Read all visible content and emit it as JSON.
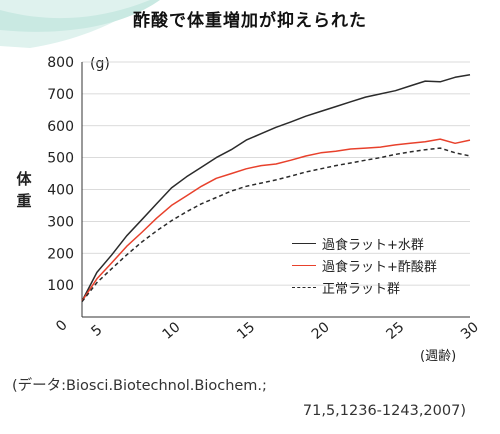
{
  "chart_data": {
    "type": "line",
    "title": "酢酸で体重増加が抑えられた",
    "unit_label": "(g)",
    "ylabel": "体重",
    "xlabel": "(週齢)",
    "xlim": [
      4,
      30
    ],
    "ylim": [
      0,
      800
    ],
    "xticks": [
      5,
      10,
      15,
      20,
      25,
      30
    ],
    "yticks": [
      0,
      100,
      200,
      300,
      400,
      500,
      600,
      700,
      800
    ],
    "grid": true,
    "legend_position": "right",
    "series": [
      {
        "name": "過食ラット+水群",
        "color": "#2b2b2b",
        "style": "solid",
        "x": [
          4,
          5,
          6,
          7,
          8,
          9,
          10,
          11,
          12,
          13,
          14,
          15,
          16,
          17,
          18,
          19,
          20,
          21,
          22,
          23,
          24,
          25,
          26,
          27,
          28,
          29,
          30
        ],
        "y": [
          50,
          140,
          195,
          255,
          305,
          355,
          405,
          440,
          470,
          500,
          525,
          555,
          575,
          595,
          612,
          630,
          645,
          660,
          675,
          690,
          700,
          710,
          725,
          740,
          738,
          752,
          760
        ]
      },
      {
        "name": "過食ラット+酢酸群",
        "color": "#e8412c",
        "style": "solid",
        "x": [
          4,
          5,
          6,
          7,
          8,
          9,
          10,
          11,
          12,
          13,
          14,
          15,
          16,
          17,
          18,
          19,
          20,
          21,
          22,
          23,
          24,
          25,
          26,
          27,
          28,
          29,
          30
        ],
        "y": [
          50,
          120,
          170,
          222,
          265,
          310,
          350,
          380,
          410,
          435,
          450,
          465,
          475,
          480,
          492,
          505,
          515,
          520,
          527,
          530,
          533,
          540,
          545,
          550,
          558,
          545,
          555
        ]
      },
      {
        "name": "正常ラット群",
        "color": "#2b2b2b",
        "style": "dashed",
        "x": [
          4,
          5,
          6,
          7,
          8,
          9,
          10,
          11,
          12,
          13,
          14,
          15,
          16,
          17,
          18,
          19,
          20,
          21,
          22,
          23,
          24,
          25,
          26,
          27,
          28,
          29,
          30
        ],
        "y": [
          48,
          108,
          152,
          195,
          235,
          270,
          302,
          330,
          355,
          375,
          395,
          410,
          420,
          430,
          442,
          455,
          465,
          475,
          483,
          492,
          500,
          510,
          518,
          525,
          530,
          515,
          505
        ]
      }
    ]
  },
  "source": {
    "line1": "(データ:Biosci.Biotechnol.Biochem.;",
    "line2": "71,5,1236-1243,2007)"
  }
}
